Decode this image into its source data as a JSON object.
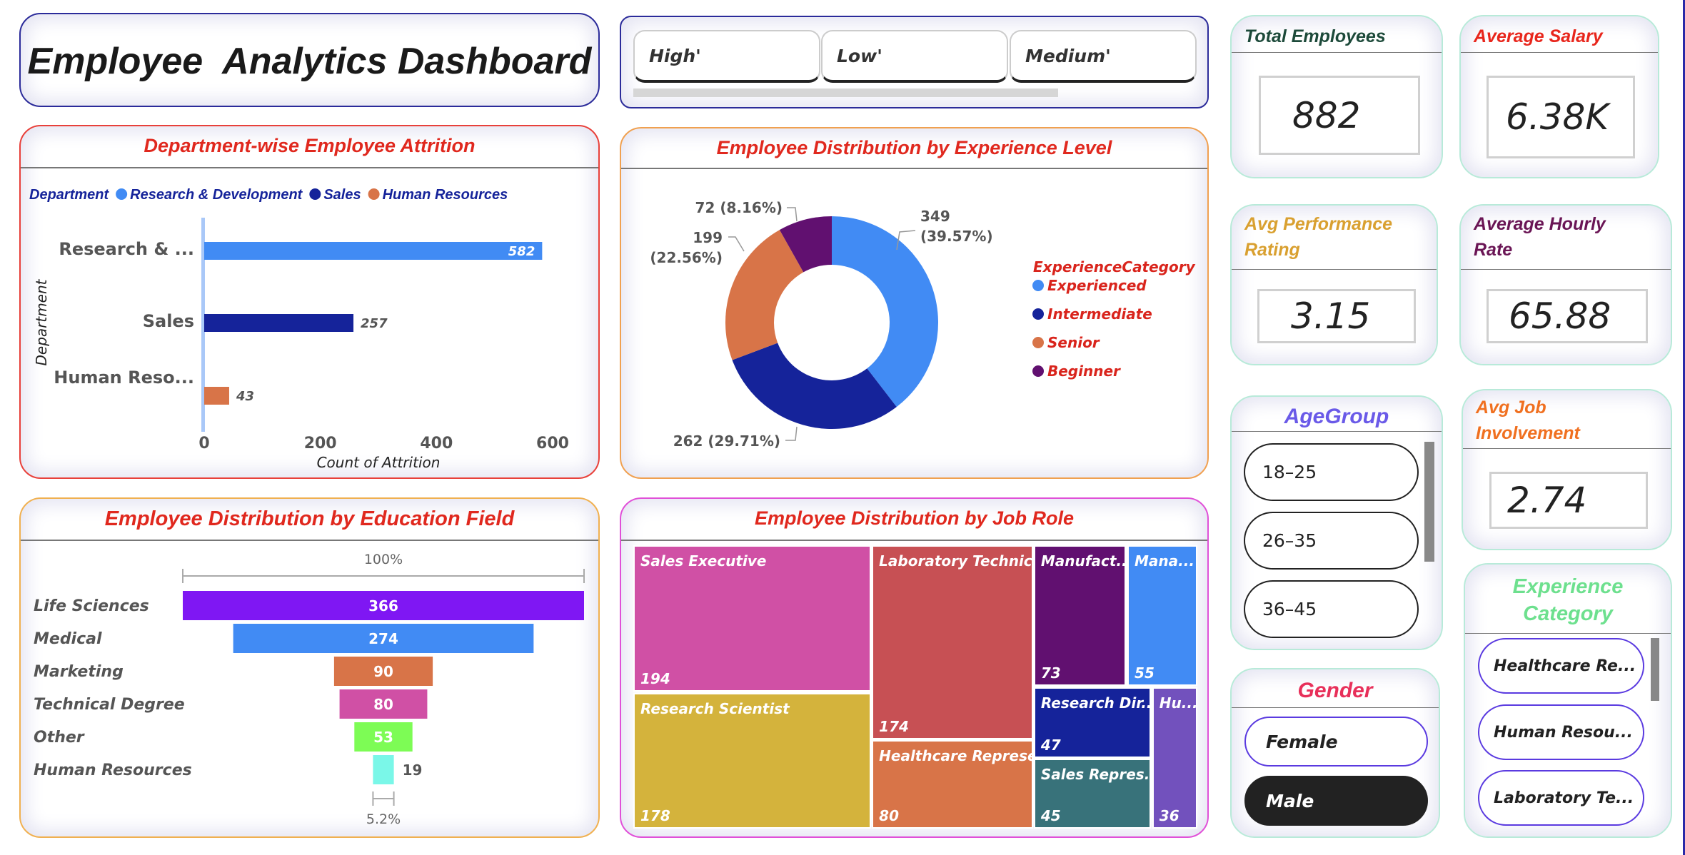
{
  "header": {
    "title": "Employee  Analytics Dashboard"
  },
  "top_slicer": {
    "items": [
      "High'",
      "Low'",
      "Medium'"
    ]
  },
  "kpis": {
    "total_employees": {
      "label": "Total Employees",
      "value": "882",
      "color": "#1d4a3a"
    },
    "average_salary": {
      "label": "Average Salary",
      "value": "6.38K",
      "color": "#e8261c"
    },
    "avg_performance": {
      "label_1": "Avg Performance",
      "label_2": "Rating",
      "value": "3.15",
      "color": "#d9a030"
    },
    "avg_hourly": {
      "label_1": "Average Hourly",
      "label_2": "Rate",
      "value": "65.88",
      "color": "#6a1555"
    },
    "avg_job": {
      "label_1": "Avg Job",
      "label_2": "Involvement",
      "value": "2.74",
      "color": "#f07020"
    }
  },
  "age_group": {
    "title": "AgeGroup",
    "items": [
      "18–25",
      "26–35",
      "36–45"
    ],
    "color": "#6a5ae8"
  },
  "gender": {
    "title": "Gender",
    "items": [
      "Female",
      "Male"
    ],
    "selected": "Male",
    "color": "#e8305a"
  },
  "experience_slicer": {
    "title_1": "Experience",
    "title_2": "Category",
    "items": [
      "Healthcare Re...",
      "Human Resou...",
      "Laboratory Te..."
    ],
    "color": "#6de08e"
  },
  "chart_data": [
    {
      "type": "bar",
      "title": "Department-wise Employee Attrition",
      "legend_title": "Department",
      "legend_position": "top-left",
      "categories": [
        "Research & ...",
        "Sales",
        "Human Reso..."
      ],
      "legend": [
        "Research & Development",
        "Sales",
        "Human Resources"
      ],
      "values": [
        582,
        257,
        43
      ],
      "colors": [
        "#418bf4",
        "#15239a",
        "#d87448"
      ],
      "xlabel": "Count of Attrition",
      "ylabel": "Department",
      "xlim": [
        0,
        600
      ],
      "ticks": [
        "0",
        "200",
        "400",
        "600"
      ]
    },
    {
      "type": "pie",
      "title": "Employee Distribution by Experience Level",
      "legend_title": "ExperienceCategory",
      "legend_position": "right",
      "categories": [
        "Experienced",
        "Intermediate",
        "Senior",
        "Beginner"
      ],
      "values": [
        349,
        262,
        199,
        72
      ],
      "percents": [
        "39.57%",
        "29.71%",
        "22.56%",
        "8.16%"
      ],
      "colors": [
        "#418bf4",
        "#15239a",
        "#d87448",
        "#611070"
      ]
    },
    {
      "type": "bar",
      "subtype": "funnel",
      "title": "Employee Distribution by Education Field",
      "categories": [
        "Life Sciences",
        "Medical",
        "Marketing",
        "Technical Degree",
        "Other",
        "Human Resources"
      ],
      "values": [
        366,
        274,
        90,
        80,
        53,
        19
      ],
      "colors": [
        "#7f17f3",
        "#418bf4",
        "#d87448",
        "#d050a5",
        "#7dfc55",
        "#7af7e8"
      ],
      "top_label": "100%",
      "bottom_label": "5.2%"
    },
    {
      "type": "treemap",
      "title": "Employee Distribution by Job Role",
      "categories": [
        "Sales Executive",
        "Research Scientist",
        "Laboratory Technic...",
        "Healthcare Represe...",
        "Manufact...",
        "Mana...",
        "Research Dir...",
        "Sales Repres...",
        "Hu..."
      ],
      "values": [
        194,
        178,
        174,
        80,
        73,
        55,
        47,
        45,
        36
      ],
      "colors": [
        "#d050a5",
        "#d4b33c",
        "#c75054",
        "#d87448",
        "#611070",
        "#418bf4",
        "#15239a",
        "#38727a",
        "#7251bd"
      ]
    }
  ]
}
